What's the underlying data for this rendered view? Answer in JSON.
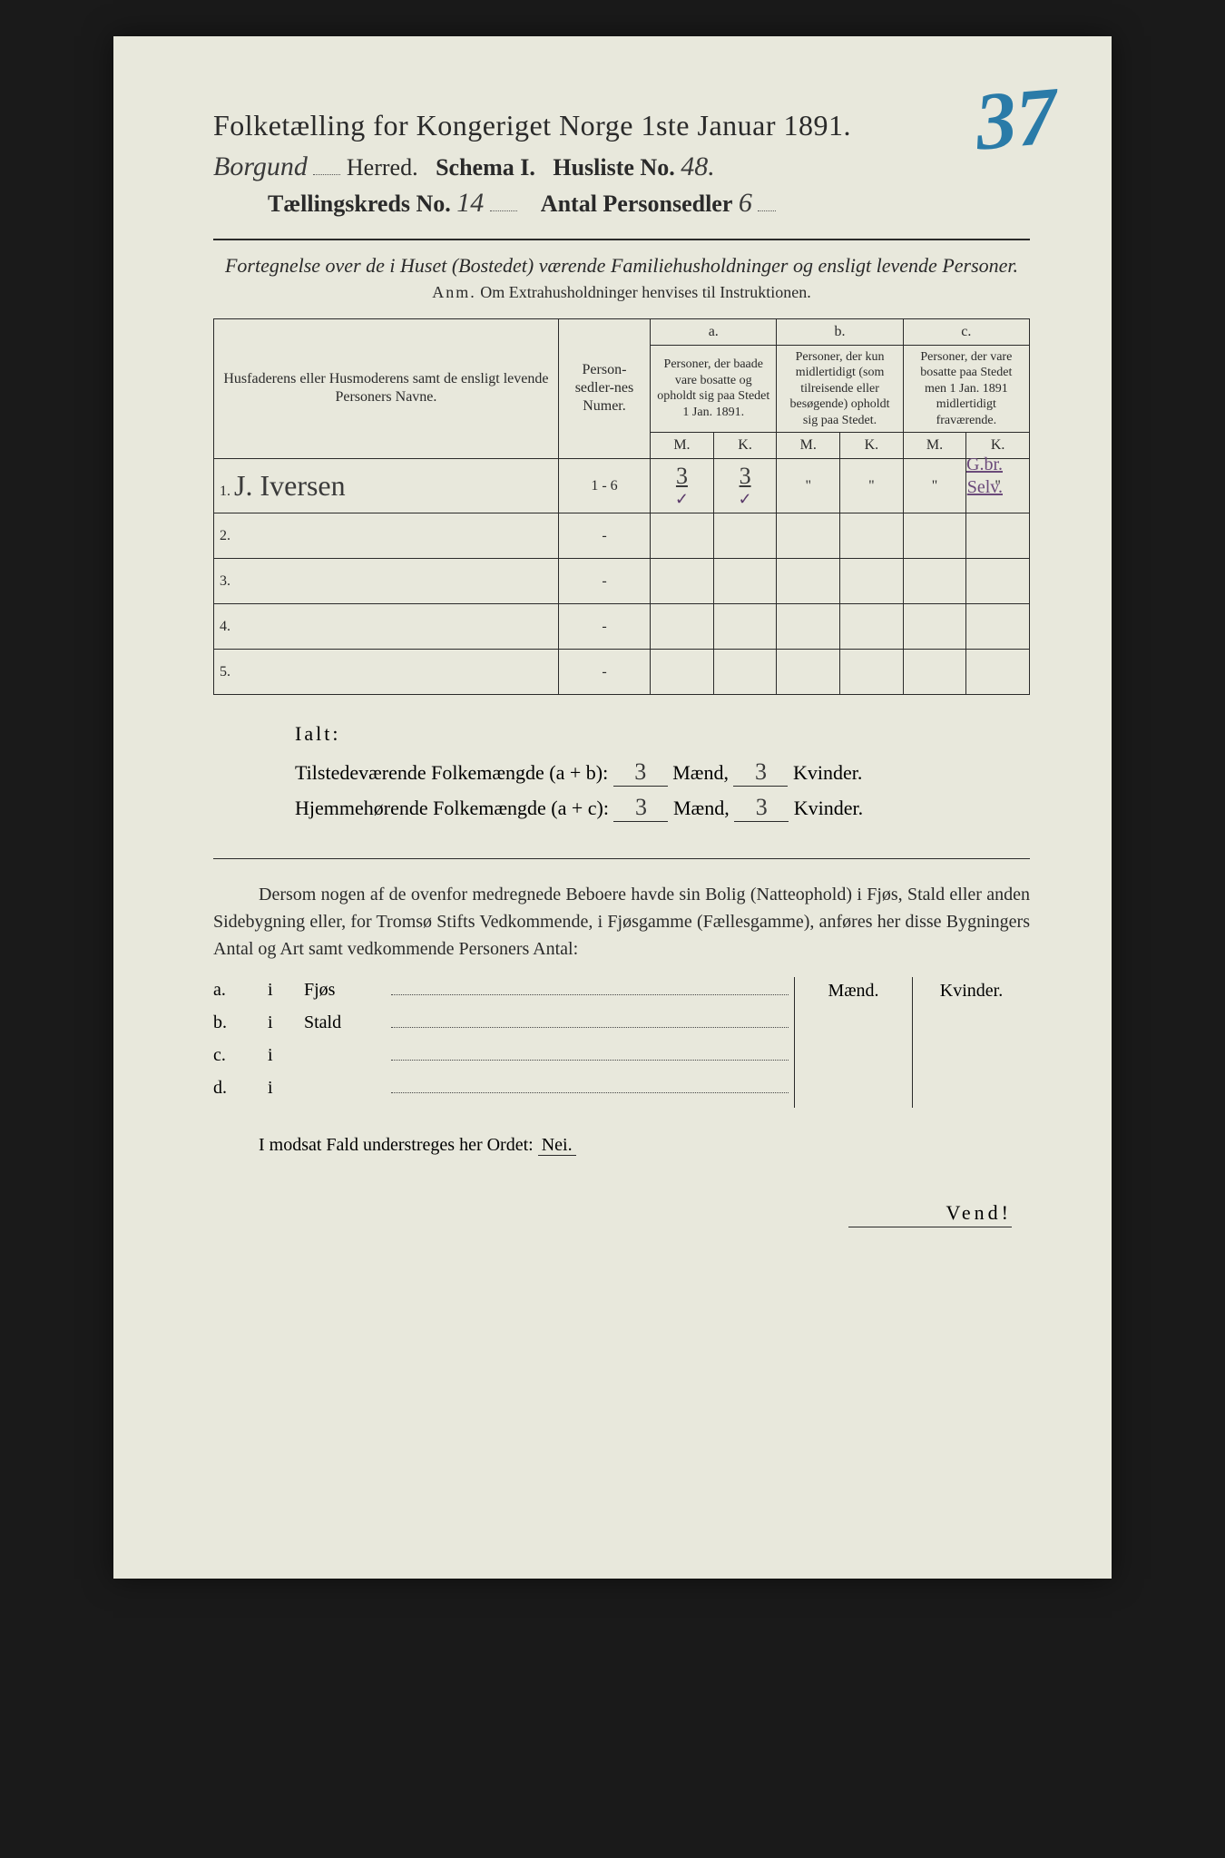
{
  "header": {
    "title": "Folketælling for Kongeriget Norge 1ste Januar 1891.",
    "page_stamp": "37",
    "herred_value": "Borgund",
    "herred_label": "Herred.",
    "schema_label": "Schema I.",
    "husliste_label": "Husliste No.",
    "husliste_value": "48.",
    "kreds_label": "Tællingskreds No.",
    "kreds_value": "14",
    "antal_label": "Antal Personsedler",
    "antal_value": "6"
  },
  "description": {
    "line": "Fortegnelse over de i Huset (Bostedet) værende Familiehusholdninger og ensligt levende Personer.",
    "anm_label": "Anm.",
    "anm_text": "Om Extrahusholdninger henvises til Instruktionen."
  },
  "table": {
    "col_name": "Husfaderens eller Husmoderens samt de ensligt levende Personers Navne.",
    "col_num": "Person-sedler-nes Numer.",
    "col_a_label": "a.",
    "col_a": "Personer, der baade vare bosatte og opholdt sig paa Stedet 1 Jan. 1891.",
    "col_b_label": "b.",
    "col_b": "Personer, der kun midlertidigt (som tilreisende eller besøgende) opholdt sig paa Stedet.",
    "col_c_label": "c.",
    "col_c": "Personer, der vare bosatte paa Stedet men 1 Jan. 1891 midlertidigt fraværende.",
    "m": "M.",
    "k": "K.",
    "outside_note_1": "G.br.",
    "outside_note_2": "Selv.",
    "rows": [
      {
        "n": "1.",
        "name": "J. Iversen",
        "num": "1 - 6",
        "a_m": "3",
        "a_k": "3",
        "b_m": "\"",
        "b_k": "\"",
        "c_m": "\"",
        "c_k": "\""
      },
      {
        "n": "2.",
        "name": "",
        "num": "-",
        "a_m": "",
        "a_k": "",
        "b_m": "",
        "b_k": "",
        "c_m": "",
        "c_k": ""
      },
      {
        "n": "3.",
        "name": "",
        "num": "-",
        "a_m": "",
        "a_k": "",
        "b_m": "",
        "b_k": "",
        "c_m": "",
        "c_k": ""
      },
      {
        "n": "4.",
        "name": "",
        "num": "-",
        "a_m": "",
        "a_k": "",
        "b_m": "",
        "b_k": "",
        "c_m": "",
        "c_k": ""
      },
      {
        "n": "5.",
        "name": "",
        "num": "-",
        "a_m": "",
        "a_k": "",
        "b_m": "",
        "b_k": "",
        "c_m": "",
        "c_k": ""
      }
    ]
  },
  "ialt": {
    "title": "Ialt:",
    "line1_label": "Tilstedeværende Folkemængde (a + b):",
    "line1_m": "3",
    "line1_k": "3",
    "line2_label": "Hjemmehørende Folkemængde (a + c):",
    "line2_m": "3",
    "line2_k": "3",
    "maend": "Mænd,",
    "kvinder": "Kvinder."
  },
  "dersom": {
    "text": "Dersom nogen af de ovenfor medregnede Beboere havde sin Bolig (Natteophold) i Fjøs, Stald eller anden Sidebygning eller, for Tromsø Stifts Vedkommende, i Fjøsgamme (Fællesgamme), anføres her disse Bygningers Antal og Art samt vedkommende Personers Antal:"
  },
  "buildings": {
    "maend": "Mænd.",
    "kvinder": "Kvinder.",
    "rows": [
      {
        "lab": "a.",
        "i": "i",
        "name": "Fjøs"
      },
      {
        "lab": "b.",
        "i": "i",
        "name": "Stald"
      },
      {
        "lab": "c.",
        "i": "i",
        "name": ""
      },
      {
        "lab": "d.",
        "i": "i",
        "name": ""
      }
    ]
  },
  "modsat": {
    "text": "I modsat Fald understreges her Ordet:",
    "nei": "Nei."
  },
  "vend": "Vend!",
  "colors": {
    "paper": "#e8e8dc",
    "ink": "#2a2a2a",
    "stamp_blue": "#2a7ba8",
    "pencil_purple": "#6b4a7a"
  }
}
